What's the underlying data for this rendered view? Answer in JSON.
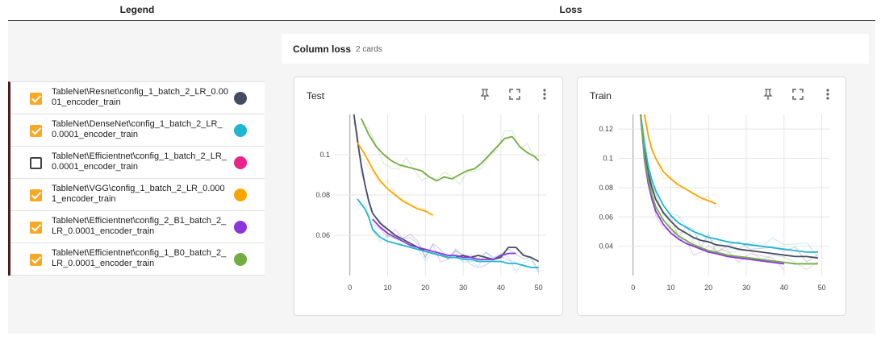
{
  "headers": {
    "legend": "Legend",
    "loss": "Loss"
  },
  "legend": {
    "items": [
      {
        "label": "TableNet\\Resnet\\config_1_batch_2_LR_0.0001_encoder_train",
        "checked": true,
        "color": "#434c63"
      },
      {
        "label": "TableNet\\DenseNet\\config_1_batch_2_LR_0.0001_encoder_train",
        "checked": true,
        "color": "#1fb6d0"
      },
      {
        "label": "TableNet\\Efficientnet\\config_1_batch_2_LR_0.0001_encoder_train",
        "checked": false,
        "color": "#e8248a"
      },
      {
        "label": "TableNet\\VGG\\config_1_batch_2_LR_0.0001_encoder_train",
        "checked": true,
        "color": "#f8a700"
      },
      {
        "label": "TableNet\\Efficientnet\\config_2_B1_batch_2_LR_0.0001_encoder_train",
        "checked": true,
        "color": "#8e35dc"
      },
      {
        "label": "TableNet\\Efficientnet\\config_1_B0_batch_2_LR_0.0001_encoder_train",
        "checked": true,
        "color": "#72ad42"
      }
    ]
  },
  "group": {
    "title": "Column loss",
    "count": "2 cards"
  },
  "icons": {
    "pin": "pin-icon",
    "fullscreen": "fullscreen-icon",
    "more": "more-vert-icon"
  },
  "chart_data": [
    {
      "type": "line",
      "title": "Test",
      "xlim": [
        -4,
        52
      ],
      "ylim": [
        0.04,
        0.12
      ],
      "x_ticks": [
        0,
        10,
        20,
        30,
        40,
        50
      ],
      "y_ticks": [
        0.06,
        0.08,
        0.1
      ],
      "y_tick_labels": [
        "0.06",
        "0.08",
        "0.1"
      ],
      "grid": true,
      "series": [
        {
          "color": "#434c63",
          "x": [
            1,
            2,
            3,
            4,
            5,
            6,
            8,
            10,
            12,
            14,
            16,
            18,
            20,
            22,
            24,
            26,
            28,
            30,
            32,
            34,
            36,
            38,
            40,
            42,
            44,
            46,
            48,
            50
          ],
          "y": [
            0.121,
            0.107,
            0.095,
            0.085,
            0.077,
            0.071,
            0.066,
            0.063,
            0.06,
            0.058,
            0.056,
            0.054,
            0.052,
            0.051,
            0.05,
            0.049,
            0.049,
            0.05,
            0.049,
            0.05,
            0.049,
            0.048,
            0.049,
            0.054,
            0.054,
            0.05,
            0.049,
            0.047
          ]
        },
        {
          "color": "#1fb6d0",
          "x": [
            2,
            4,
            5,
            6,
            8,
            10,
            12,
            14,
            16,
            18,
            20,
            22,
            24,
            26,
            28,
            30,
            32,
            34,
            36,
            38,
            40,
            42,
            44,
            46,
            48,
            50
          ],
          "y": [
            0.078,
            0.073,
            0.069,
            0.063,
            0.059,
            0.057,
            0.056,
            0.055,
            0.054,
            0.053,
            0.052,
            0.051,
            0.05,
            0.049,
            0.049,
            0.048,
            0.048,
            0.047,
            0.047,
            0.047,
            0.047,
            0.046,
            0.046,
            0.045,
            0.044,
            0.044
          ]
        },
        {
          "color": "#f8a700",
          "x": [
            2,
            4,
            6,
            8,
            10,
            12,
            14,
            16,
            18,
            20,
            22
          ],
          "y": [
            0.106,
            0.1,
            0.093,
            0.087,
            0.083,
            0.08,
            0.077,
            0.075,
            0.073,
            0.072,
            0.07
          ]
        },
        {
          "color": "#8e35dc",
          "x": [
            6,
            8,
            10,
            12,
            14,
            16,
            18,
            20,
            22,
            24,
            26,
            28,
            30,
            32,
            34,
            36,
            38,
            40,
            42,
            44
          ],
          "y": [
            0.068,
            0.064,
            0.061,
            0.059,
            0.057,
            0.055,
            0.054,
            0.053,
            0.052,
            0.051,
            0.05,
            0.05,
            0.049,
            0.049,
            0.048,
            0.048,
            0.048,
            0.05,
            0.051,
            0.051
          ]
        },
        {
          "color": "#72ad42",
          "x": [
            3,
            5,
            7,
            9,
            11,
            13,
            15,
            17,
            19,
            21,
            23,
            25,
            27,
            29,
            31,
            33,
            35,
            37,
            39,
            41,
            43,
            45,
            47,
            49,
            50
          ],
          "y": [
            0.118,
            0.11,
            0.104,
            0.1,
            0.097,
            0.095,
            0.094,
            0.093,
            0.092,
            0.089,
            0.087,
            0.089,
            0.088,
            0.09,
            0.092,
            0.093,
            0.096,
            0.1,
            0.104,
            0.108,
            0.109,
            0.104,
            0.101,
            0.099,
            0.097
          ]
        }
      ]
    },
    {
      "type": "line",
      "title": "Train",
      "xlim": [
        -4,
        52
      ],
      "ylim": [
        0.02,
        0.13
      ],
      "x_ticks": [
        0,
        10,
        20,
        30,
        40,
        50
      ],
      "y_ticks": [
        0.04,
        0.06,
        0.08,
        0.1,
        0.12
      ],
      "y_tick_labels": [
        "0.04",
        "0.06",
        "0.08",
        "0.1",
        "0.12"
      ],
      "grid": true,
      "series": [
        {
          "color": "#434c63",
          "x": [
            2,
            3,
            4,
            5,
            6,
            8,
            10,
            12,
            14,
            16,
            18,
            20,
            22,
            25,
            28,
            31,
            34,
            37,
            40,
            43,
            46,
            49
          ],
          "y": [
            0.13,
            0.105,
            0.09,
            0.08,
            0.072,
            0.063,
            0.057,
            0.052,
            0.049,
            0.046,
            0.044,
            0.043,
            0.041,
            0.04,
            0.038,
            0.037,
            0.036,
            0.035,
            0.034,
            0.033,
            0.033,
            0.032
          ]
        },
        {
          "color": "#1fb6d0",
          "x": [
            2,
            3,
            4,
            5,
            6,
            8,
            10,
            12,
            14,
            16,
            18,
            20,
            22,
            25,
            28,
            31,
            34,
            37,
            40,
            43,
            46,
            49
          ],
          "y": [
            0.13,
            0.11,
            0.095,
            0.085,
            0.078,
            0.068,
            0.061,
            0.056,
            0.053,
            0.05,
            0.048,
            0.046,
            0.045,
            0.043,
            0.042,
            0.041,
            0.04,
            0.039,
            0.038,
            0.037,
            0.036,
            0.036
          ]
        },
        {
          "color": "#f8a700",
          "x": [
            3,
            4,
            5,
            6,
            8,
            10,
            12,
            14,
            16,
            18,
            20,
            22
          ],
          "y": [
            0.13,
            0.116,
            0.106,
            0.1,
            0.091,
            0.086,
            0.082,
            0.079,
            0.076,
            0.073,
            0.071,
            0.069
          ]
        },
        {
          "color": "#8e35dc",
          "x": [
            2,
            3,
            4,
            5,
            6,
            8,
            10,
            12,
            14,
            16,
            18,
            20,
            22,
            25,
            28,
            31,
            34,
            37,
            40
          ],
          "y": [
            0.13,
            0.1,
            0.083,
            0.072,
            0.064,
            0.055,
            0.049,
            0.045,
            0.042,
            0.04,
            0.038,
            0.036,
            0.035,
            0.033,
            0.032,
            0.031,
            0.03,
            0.029,
            0.028
          ]
        },
        {
          "color": "#72ad42",
          "x": [
            2,
            3,
            4,
            5,
            6,
            8,
            10,
            12,
            14,
            16,
            18,
            20,
            22,
            25,
            28,
            31,
            34,
            37,
            40,
            43,
            46,
            49
          ],
          "y": [
            0.13,
            0.102,
            0.086,
            0.075,
            0.067,
            0.058,
            0.052,
            0.047,
            0.044,
            0.041,
            0.039,
            0.037,
            0.036,
            0.034,
            0.033,
            0.032,
            0.031,
            0.03,
            0.029,
            0.028,
            0.028,
            0.028
          ]
        }
      ]
    }
  ]
}
